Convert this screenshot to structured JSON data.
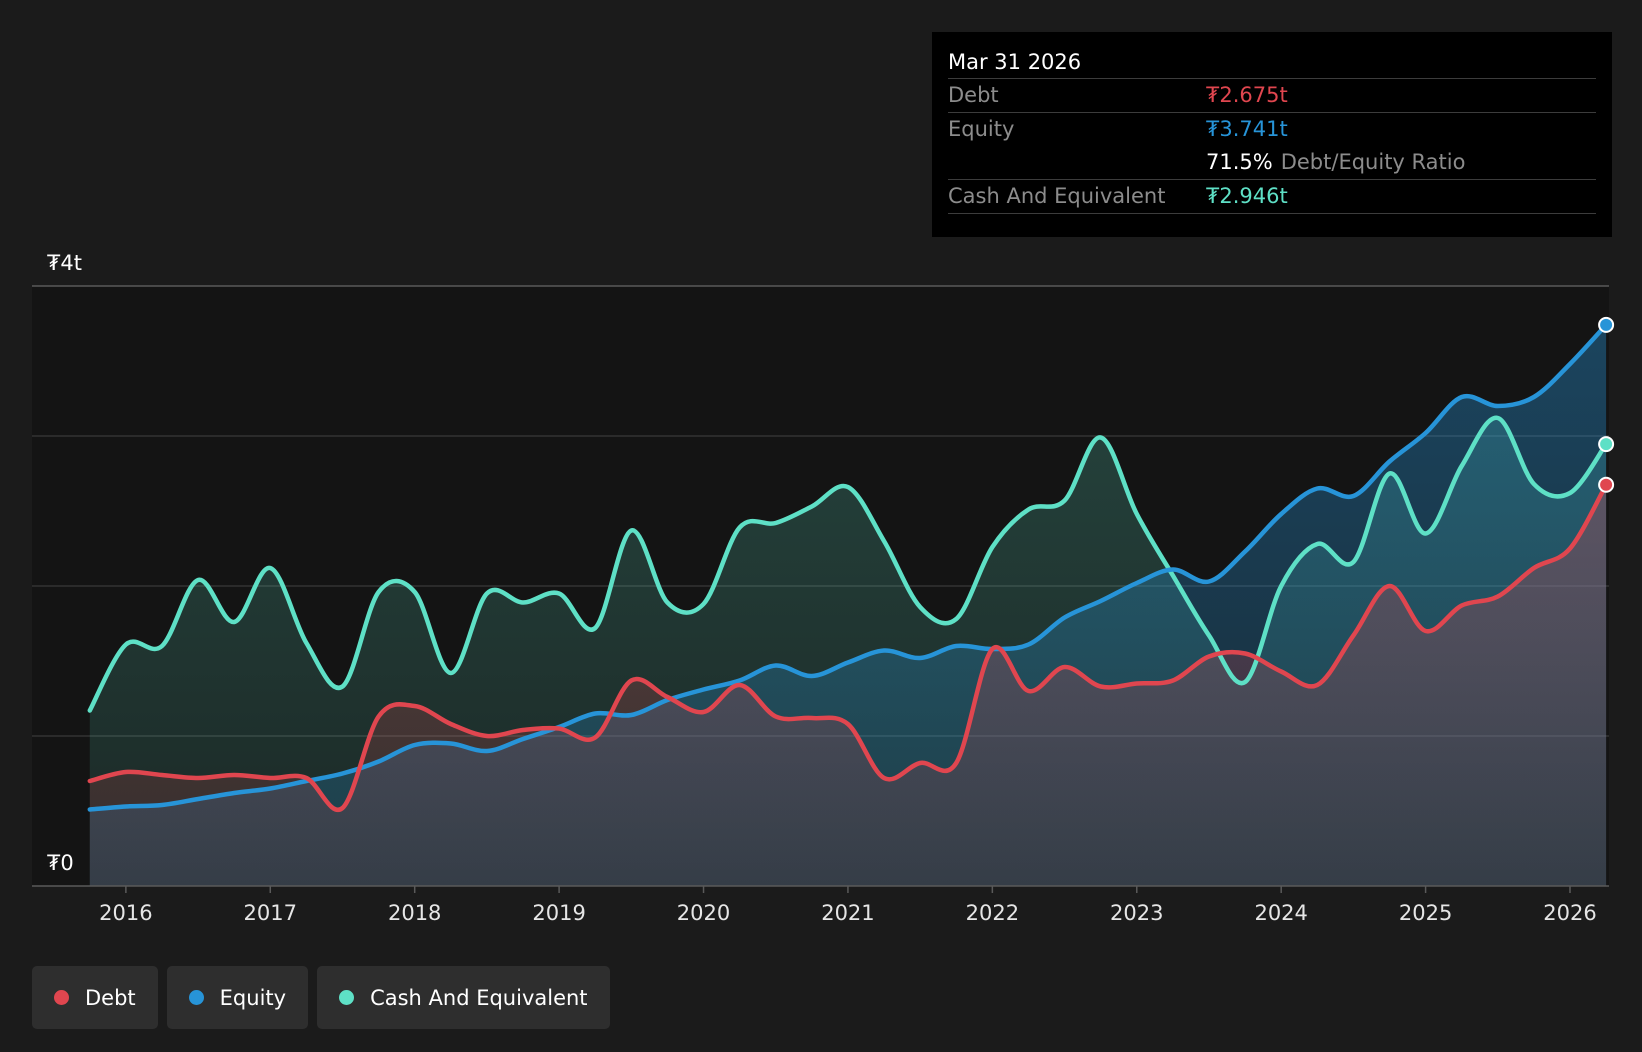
{
  "chart_data": {
    "type": "area",
    "x": [
      2015.75,
      2016.0,
      2016.25,
      2016.5,
      2016.75,
      2017.0,
      2017.25,
      2017.5,
      2017.75,
      2018.0,
      2018.25,
      2018.5,
      2018.75,
      2019.0,
      2019.25,
      2019.5,
      2019.75,
      2020.0,
      2020.25,
      2020.5,
      2020.75,
      2021.0,
      2021.25,
      2021.5,
      2021.75,
      2022.0,
      2022.25,
      2022.5,
      2022.75,
      2023.0,
      2023.25,
      2023.5,
      2023.75,
      2024.0,
      2024.25,
      2024.5,
      2024.75,
      2025.0,
      2025.25,
      2025.5,
      2025.75,
      2026.0,
      2026.25
    ],
    "series": [
      {
        "name": "Debt",
        "color": "#e0464f",
        "values": [
          0.7,
          0.76,
          0.74,
          0.72,
          0.74,
          0.72,
          0.72,
          0.52,
          1.13,
          1.2,
          1.08,
          1.0,
          1.04,
          1.05,
          0.99,
          1.37,
          1.26,
          1.16,
          1.34,
          1.13,
          1.12,
          1.08,
          0.72,
          0.82,
          0.82,
          1.58,
          1.3,
          1.46,
          1.33,
          1.35,
          1.37,
          1.53,
          1.55,
          1.43,
          1.34,
          1.67,
          2.0,
          1.7,
          1.87,
          1.93,
          2.12,
          2.25,
          2.675
        ]
      },
      {
        "name": "Equity",
        "color": "#2794d8",
        "values": [
          0.51,
          0.53,
          0.54,
          0.58,
          0.62,
          0.65,
          0.7,
          0.75,
          0.83,
          0.94,
          0.95,
          0.9,
          0.98,
          1.06,
          1.15,
          1.14,
          1.24,
          1.31,
          1.37,
          1.47,
          1.4,
          1.49,
          1.57,
          1.52,
          1.6,
          1.58,
          1.61,
          1.79,
          1.9,
          2.02,
          2.11,
          2.03,
          2.23,
          2.48,
          2.65,
          2.6,
          2.83,
          3.02,
          3.26,
          3.2,
          3.26,
          3.48,
          3.741
        ]
      },
      {
        "name": "Cash And Equivalent",
        "color": "#5ee0c6",
        "values": [
          1.17,
          1.61,
          1.6,
          2.04,
          1.76,
          2.12,
          1.62,
          1.33,
          1.96,
          1.96,
          1.42,
          1.95,
          1.89,
          1.95,
          1.72,
          2.37,
          1.89,
          1.88,
          2.39,
          2.42,
          2.53,
          2.66,
          2.3,
          1.86,
          1.78,
          2.26,
          2.51,
          2.57,
          2.99,
          2.48,
          2.07,
          1.67,
          1.36,
          2.0,
          2.28,
          2.16,
          2.75,
          2.35,
          2.8,
          3.12,
          2.68,
          2.62,
          2.946
        ]
      }
    ],
    "y_unit": "t",
    "ylim": [
      0,
      4
    ],
    "xlim": [
      2015.35,
      2026.27
    ],
    "y_tick_labels": [
      "₮0",
      "₮4t"
    ],
    "x_tick_labels": [
      "2016",
      "2017",
      "2018",
      "2019",
      "2020",
      "2021",
      "2022",
      "2023",
      "2024",
      "2025",
      "2026"
    ],
    "x_tick_values": [
      2016,
      2017,
      2018,
      2019,
      2020,
      2021,
      2022,
      2023,
      2024,
      2025,
      2026
    ],
    "grid": true,
    "legend_position": "bottom-left"
  },
  "tooltip": {
    "date": "Mar 31 2026",
    "debt_label": "Debt",
    "debt_value": "₮2.675t",
    "equity_label": "Equity",
    "equity_value": "₮3.741t",
    "ratio_value": "71.5%",
    "ratio_label": "Debt/Equity Ratio",
    "cash_label": "Cash And Equivalent",
    "cash_value": "₮2.946t"
  },
  "legend": [
    {
      "label": "Debt",
      "color": "#e0464f"
    },
    {
      "label": "Equity",
      "color": "#2794d8"
    },
    {
      "label": "Cash And Equivalent",
      "color": "#5ee0c6"
    }
  ]
}
